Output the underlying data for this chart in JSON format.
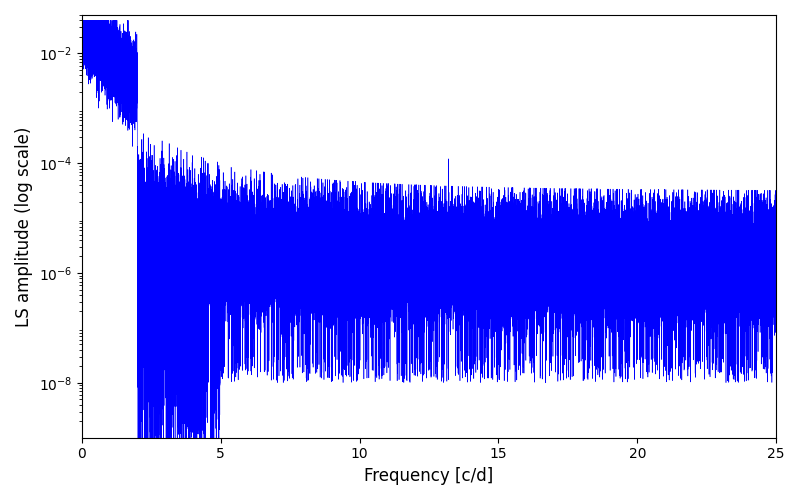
{
  "xlabel": "Frequency [c/d]",
  "ylabel": "LS amplitude (log scale)",
  "xlim": [
    0,
    25
  ],
  "ylim": [
    1e-09,
    0.05
  ],
  "line_color": "#0000ff",
  "line_width": 0.4,
  "background_color": "#ffffff",
  "yscale": "log",
  "n_points": 50000,
  "freq_max": 25.0,
  "seed": 7,
  "figsize": [
    8.0,
    5.0
  ],
  "dpi": 100,
  "yticks": [
    1e-08,
    1e-06,
    0.0001,
    0.01
  ]
}
